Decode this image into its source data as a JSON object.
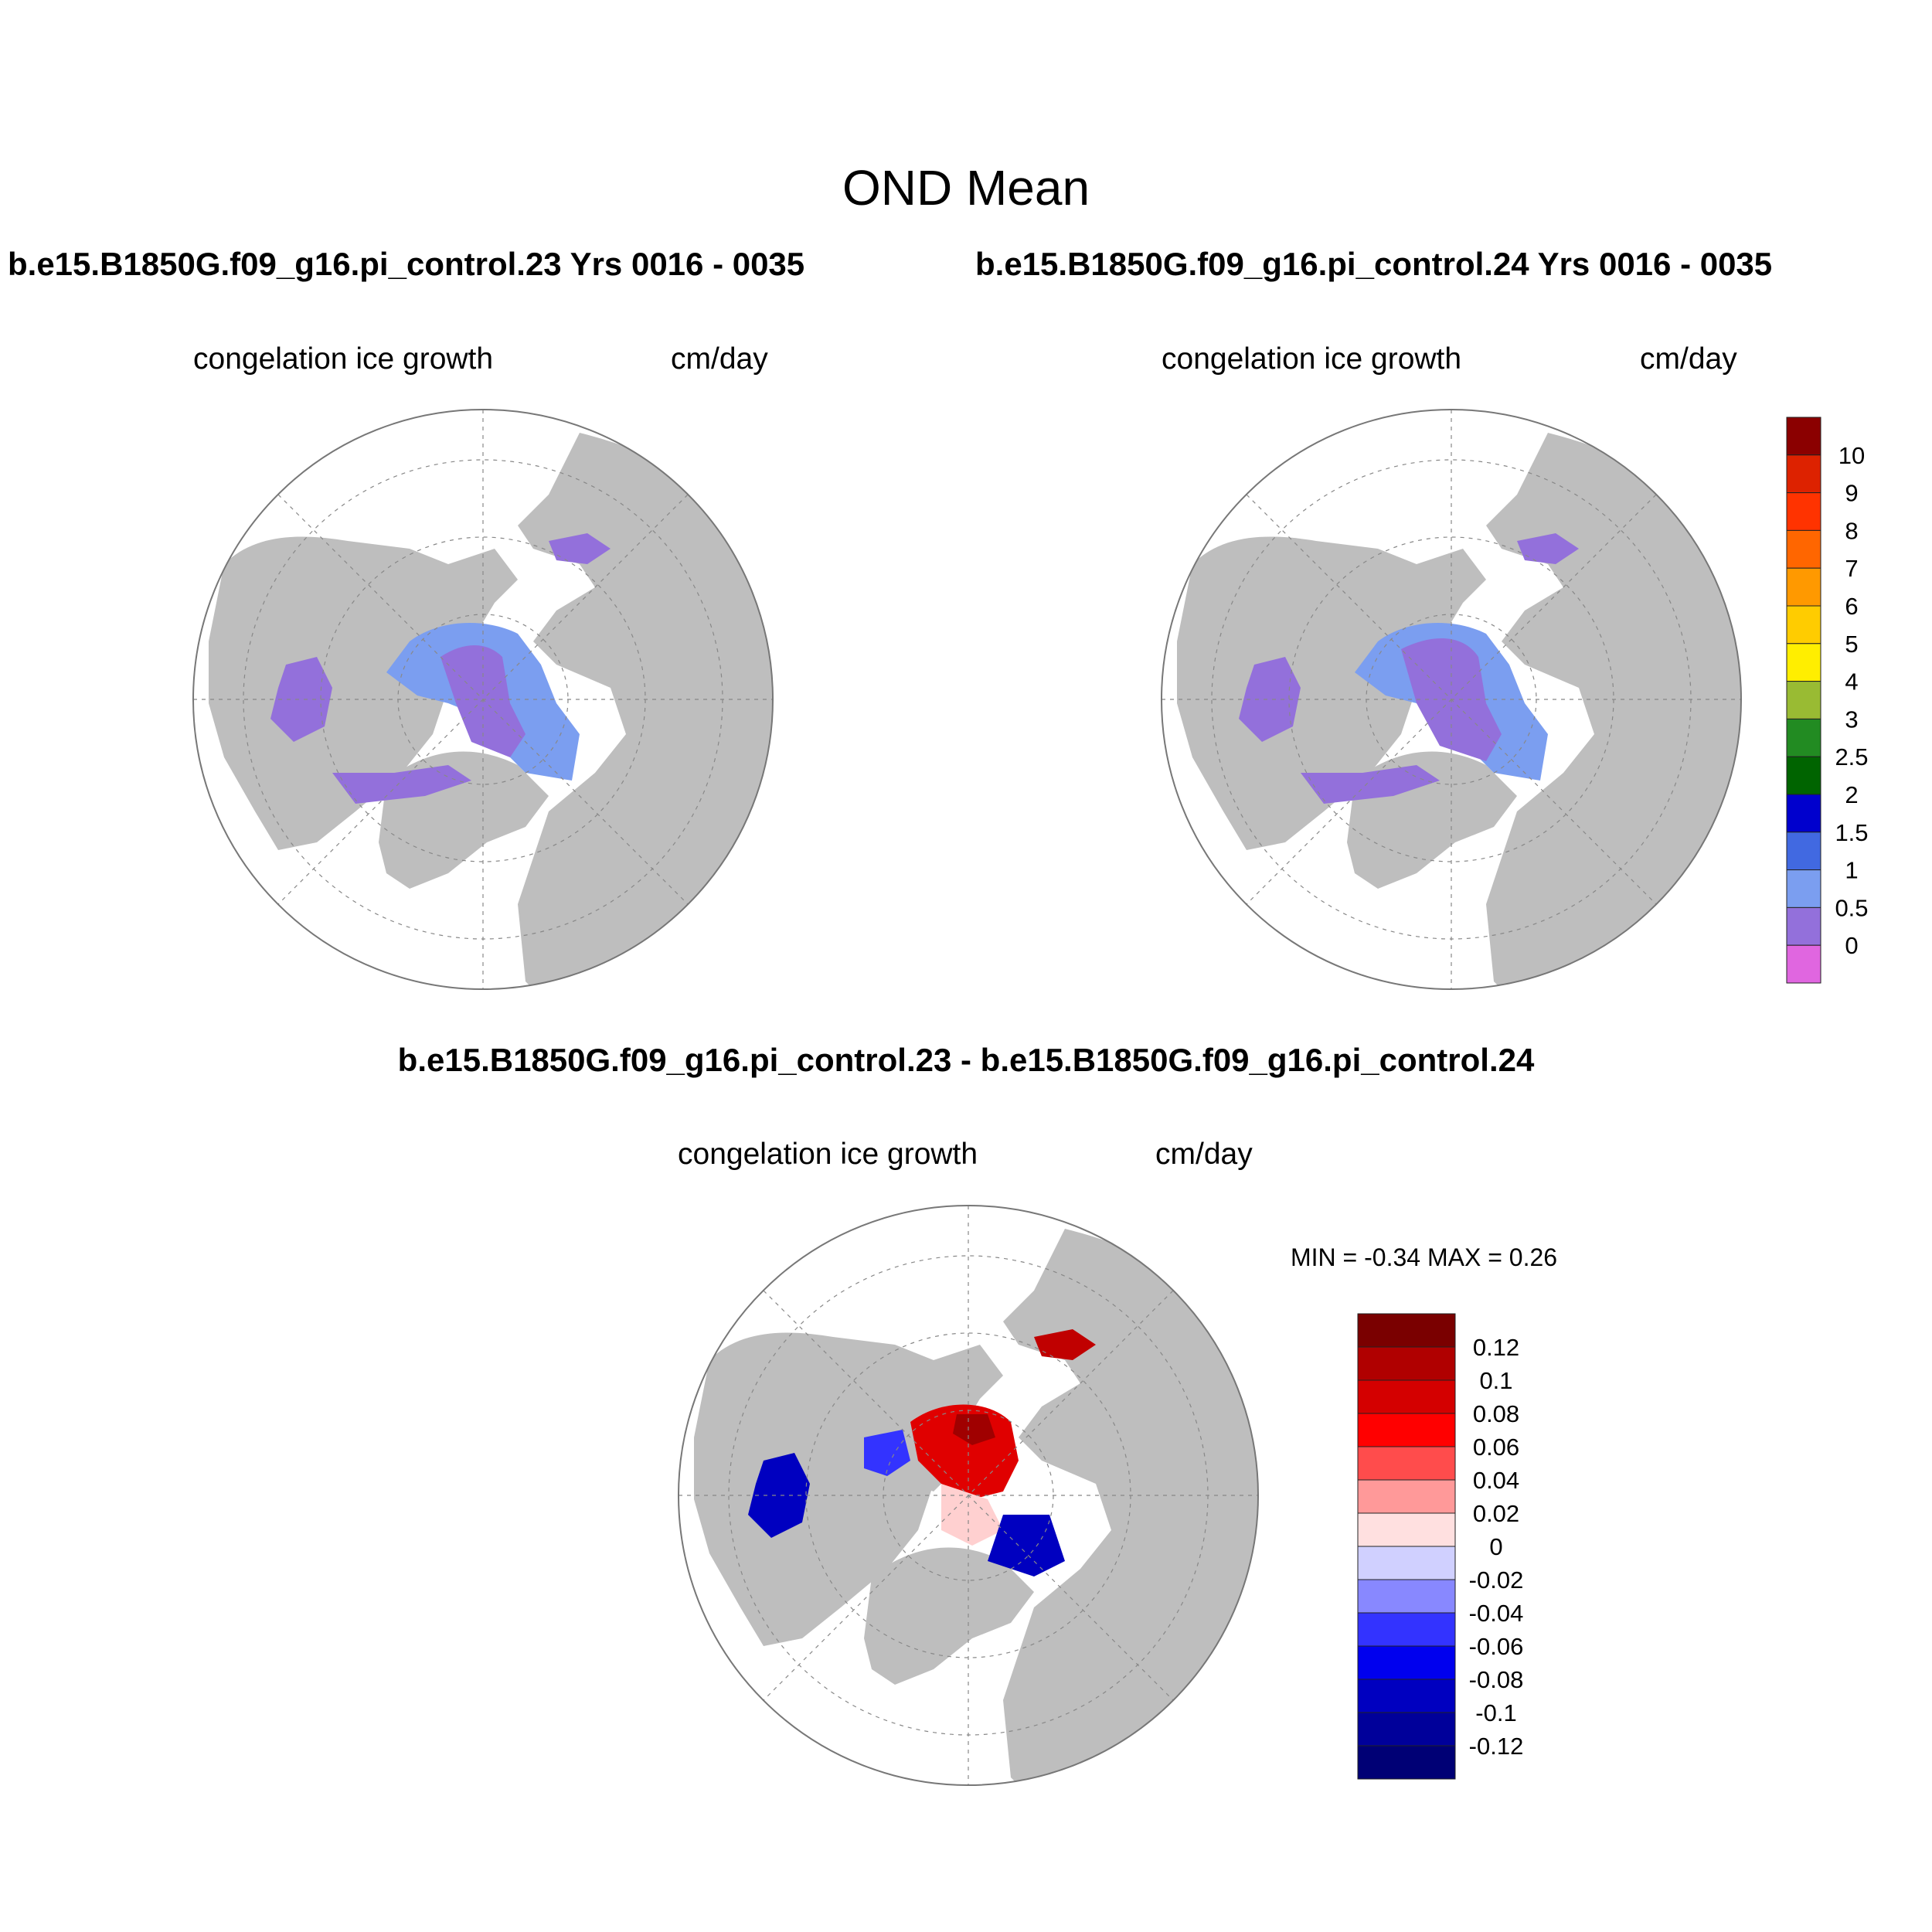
{
  "main_title": "OND Mean",
  "panels": [
    {
      "case_title": "b.e15.B1850G.f09_g16.pi_control.23  Yrs 0016 - 0035",
      "left_label": "congelation ice growth",
      "right_label": "cm/day"
    },
    {
      "case_title": "b.e15.B1850G.f09_g16.pi_control.24  Yrs 0016 - 0035",
      "left_label": "congelation ice growth",
      "right_label": "cm/day"
    }
  ],
  "diff_panel": {
    "title": "b.e15.B1850G.f09_g16.pi_control.23 - b.e15.B1850G.f09_g16.pi_control.24",
    "left_label": "congelation ice growth",
    "right_label": "cm/day",
    "min_max_text": "MIN =  -0.34 MAX =   0.26"
  },
  "colorbar_abs": {
    "labels": [
      "10",
      "9",
      "8",
      "7",
      "6",
      "5",
      "4",
      "3",
      "2.5",
      "2",
      "1.5",
      "1",
      "0.5",
      "0"
    ],
    "colors": [
      "#8b0000",
      "#dd2200",
      "#ff3300",
      "#ff6600",
      "#ff9900",
      "#ffcc00",
      "#ffee00",
      "#99bb33",
      "#228b22",
      "#006400",
      "#0000cd",
      "#4169e1",
      "#7b9ef0",
      "#9370db",
      "#e066e0"
    ]
  },
  "colorbar_diff": {
    "labels": [
      "0.12",
      "0.1",
      "0.08",
      "0.06",
      "0.04",
      "0.02",
      "0",
      "-0.02",
      "-0.04",
      "-0.06",
      "-0.08",
      "-0.1",
      "-0.12"
    ],
    "colors": [
      "#7a0000",
      "#b00000",
      "#d40000",
      "#ff0000",
      "#ff4c4c",
      "#ff9999",
      "#ffe0e0",
      "#d0d0ff",
      "#8888ff",
      "#3333ff",
      "#0000ee",
      "#0000c0",
      "#00009a",
      "#000075"
    ]
  },
  "colors": {
    "land": "#bebebe",
    "ice_0": "#9370db",
    "ice_05": "#7b9ef0",
    "ice_1": "#4169e1",
    "diff_pos": "#e00000",
    "diff_neg": "#0000c0"
  }
}
